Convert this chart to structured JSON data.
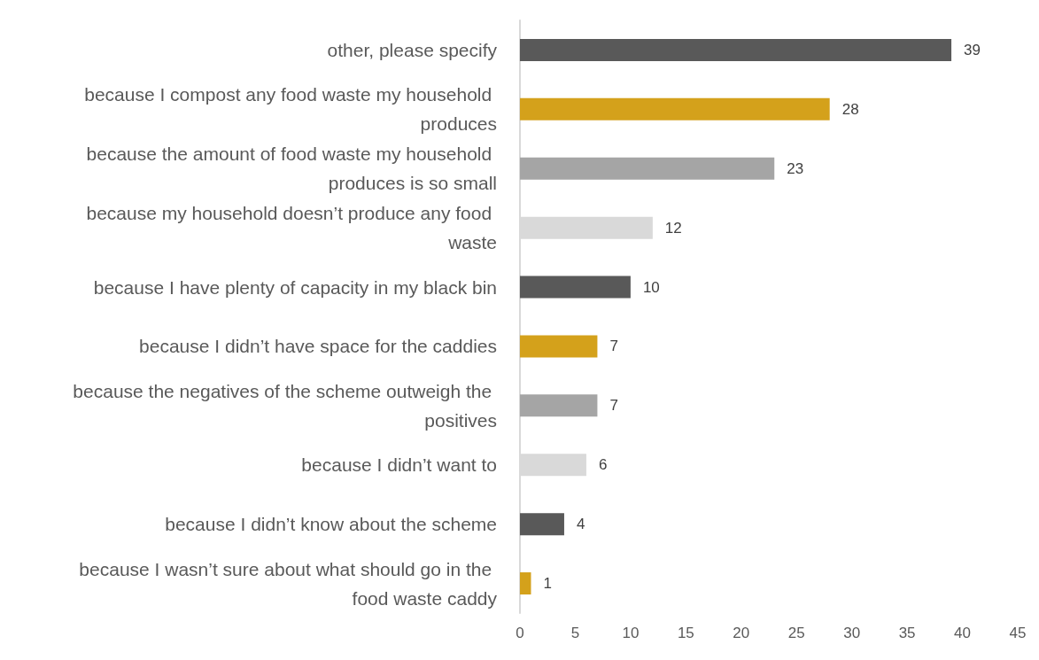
{
  "chart_data": {
    "type": "bar",
    "orientation": "horizontal",
    "categories": [
      "other, please specify",
      "because I compost any food waste my household produces",
      "because the amount of food waste my household produces is so small",
      "because my household doesn’t produce any food waste",
      "because I have plenty of capacity in my black bin",
      "because I didn’t have space for the caddies",
      "because the negatives of the scheme outweigh the positives",
      "because I didn’t want to",
      "because I didn’t know about the scheme",
      "because I wasn’t sure about what should go in the food waste caddy"
    ],
    "values": [
      39,
      28,
      23,
      12,
      10,
      7,
      7,
      6,
      4,
      1
    ],
    "colors": [
      "#595959",
      "#d4a11b",
      "#a5a5a5",
      "#d9d9d9",
      "#595959",
      "#d4a11b",
      "#a5a5a5",
      "#d9d9d9",
      "#595959",
      "#d4a11b"
    ],
    "xlim": [
      0,
      45
    ],
    "xticks": [
      0,
      5,
      10,
      15,
      20,
      25,
      30,
      35,
      40,
      45
    ],
    "grid": false,
    "data_labels": true
  }
}
